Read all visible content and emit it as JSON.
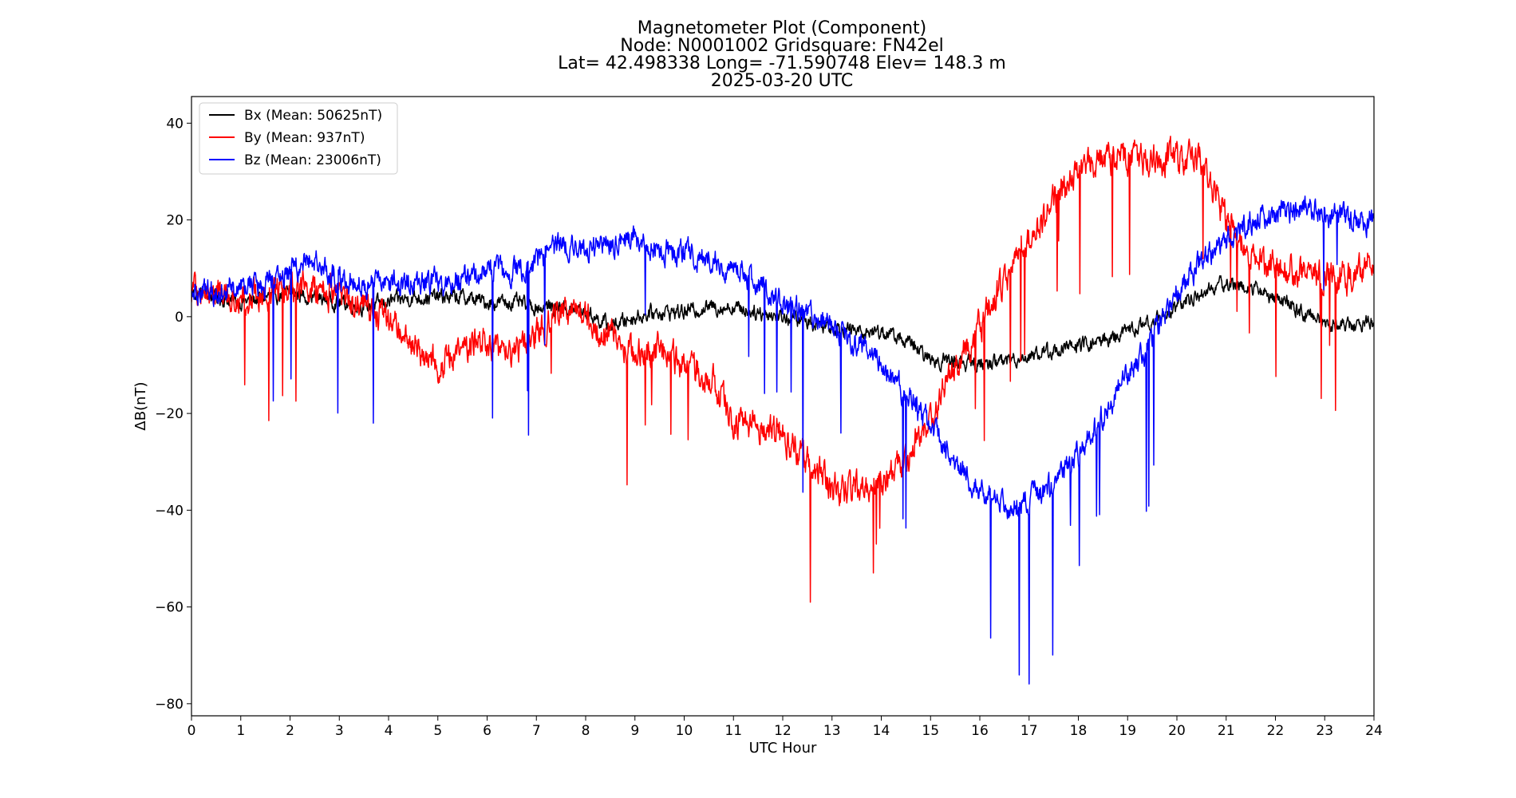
{
  "chart_data": {
    "type": "line",
    "title_lines": [
      "Magnetometer Plot (Component)",
      "Node:  N0001002     Gridsquare:  FN42el",
      "Lat= 42.498338    Long= -71.590748    Elev= 148.3 m",
      "2025-03-20  UTC"
    ],
    "xlabel": "UTC Hour",
    "ylabel": "ΔB(nT)",
    "xlim": [
      0,
      24
    ],
    "ylim": [
      -82.5,
      45.5
    ],
    "xticks": [
      0,
      1,
      2,
      3,
      4,
      5,
      6,
      7,
      8,
      9,
      10,
      11,
      12,
      13,
      14,
      15,
      16,
      17,
      18,
      19,
      20,
      21,
      22,
      23,
      24
    ],
    "yticks": [
      -80,
      -60,
      -40,
      -20,
      0,
      20,
      40
    ],
    "ytick_labels": [
      "−80",
      "−60",
      "−40",
      "−20",
      "0",
      "20",
      "40"
    ],
    "grid": false,
    "legend_position": "top-left",
    "series": [
      {
        "name": "Bx (Mean: 50625nT)",
        "color": "#000000",
        "noise": 1.2,
        "x": [
          0,
          0.5,
          1,
          1.5,
          2,
          2.5,
          3,
          3.5,
          4,
          4.5,
          5,
          5.5,
          6,
          6.5,
          7,
          7.5,
          8,
          8.5,
          9,
          9.5,
          10,
          10.5,
          11,
          11.5,
          12,
          12.5,
          13,
          13.5,
          14,
          14.5,
          15,
          15.5,
          16,
          16.5,
          17,
          17.5,
          18,
          18.5,
          19,
          19.5,
          20,
          20.5,
          21,
          21.5,
          22,
          22.5,
          23,
          23.5,
          24
        ],
        "values": [
          5,
          4,
          3,
          4,
          5,
          4,
          3,
          2,
          3,
          4,
          4,
          4,
          3,
          3,
          2,
          2,
          1,
          -2,
          0,
          1,
          1,
          2,
          2,
          1,
          0,
          -1,
          -2,
          -3,
          -3,
          -5,
          -9,
          -9,
          -10,
          -9,
          -8,
          -7,
          -6,
          -5,
          -3,
          -1,
          2,
          5,
          7,
          6,
          4,
          1,
          -1,
          -2,
          -1
        ]
      },
      {
        "name": "By (Mean: 937nT)",
        "color": "#ff0000",
        "noise": 2.5,
        "x": [
          0,
          0.5,
          1,
          1.5,
          2,
          2.5,
          3,
          3.5,
          4,
          4.5,
          5,
          5.5,
          6,
          6.5,
          7,
          7.5,
          8,
          8.5,
          9,
          9.5,
          10,
          10.5,
          11,
          11.5,
          12,
          12.5,
          13,
          13.5,
          14,
          14.5,
          15,
          15.5,
          16,
          16.5,
          17,
          17.5,
          18,
          18.5,
          19,
          19.5,
          20,
          20.5,
          21,
          21.5,
          22,
          22.5,
          23,
          23.5,
          24
        ],
        "values": [
          5,
          5,
          4,
          5,
          6,
          6,
          4,
          2,
          0,
          -6,
          -10,
          -6,
          -5,
          -8,
          -3,
          2,
          0,
          -4,
          -8,
          -7,
          -10,
          -12,
          -22,
          -22,
          -25,
          -30,
          -35,
          -36,
          -34,
          -30,
          -20,
          -10,
          -2,
          8,
          16,
          24,
          30,
          32,
          33,
          32,
          33,
          32,
          20,
          12,
          10,
          9,
          8,
          8,
          12
        ]
      },
      {
        "name": "Bz (Mean: 23006nT)",
        "color": "#0000ff",
        "noise": 2.0,
        "x": [
          0,
          0.5,
          1,
          1.5,
          2,
          2.5,
          3,
          3.5,
          4,
          4.5,
          5,
          5.5,
          6,
          6.5,
          7,
          7.5,
          8,
          8.5,
          9,
          9.5,
          10,
          10.5,
          11,
          11.5,
          12,
          12.5,
          13,
          13.5,
          14,
          14.5,
          15,
          15.5,
          16,
          16.5,
          17,
          17.5,
          18,
          18.5,
          19,
          19.5,
          20,
          20.5,
          21,
          21.5,
          22,
          22.5,
          23,
          23.5,
          24
        ],
        "values": [
          4,
          6,
          6,
          7,
          9,
          12,
          8,
          6,
          7,
          7,
          7,
          8,
          9,
          9,
          11,
          15,
          14,
          15,
          16,
          14,
          13,
          12,
          10,
          7,
          3,
          0,
          -2,
          -5,
          -10,
          -16,
          -23,
          -30,
          -36,
          -39,
          -38,
          -35,
          -28,
          -20,
          -12,
          -5,
          5,
          12,
          16,
          20,
          21,
          22,
          21,
          20,
          20
        ]
      }
    ]
  }
}
